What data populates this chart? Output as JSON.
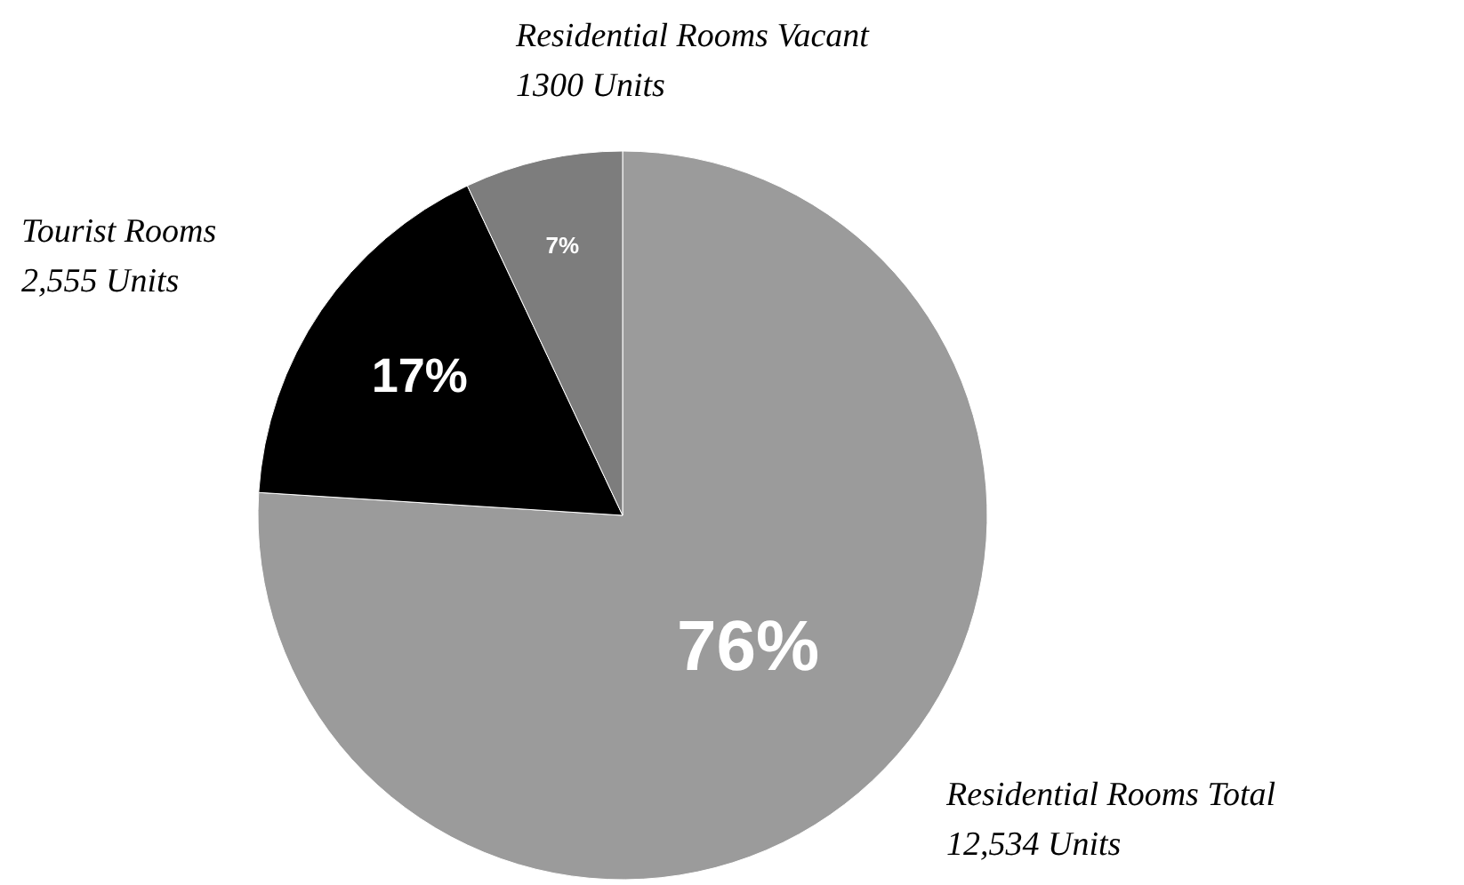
{
  "chart_data": {
    "type": "pie",
    "categories": [
      "Residential Rooms Total",
      "Tourist Rooms",
      "Residential Rooms Vacant"
    ],
    "values": [
      76,
      17,
      7
    ],
    "colors": [
      "#9b9b9b",
      "#000000",
      "#7d7d7d"
    ],
    "value_labels": [
      "76%",
      "17%",
      "7%"
    ],
    "annotations": [
      "12,534 Units",
      "2,555 Units",
      "1300 Units"
    ],
    "legend": false
  }
}
